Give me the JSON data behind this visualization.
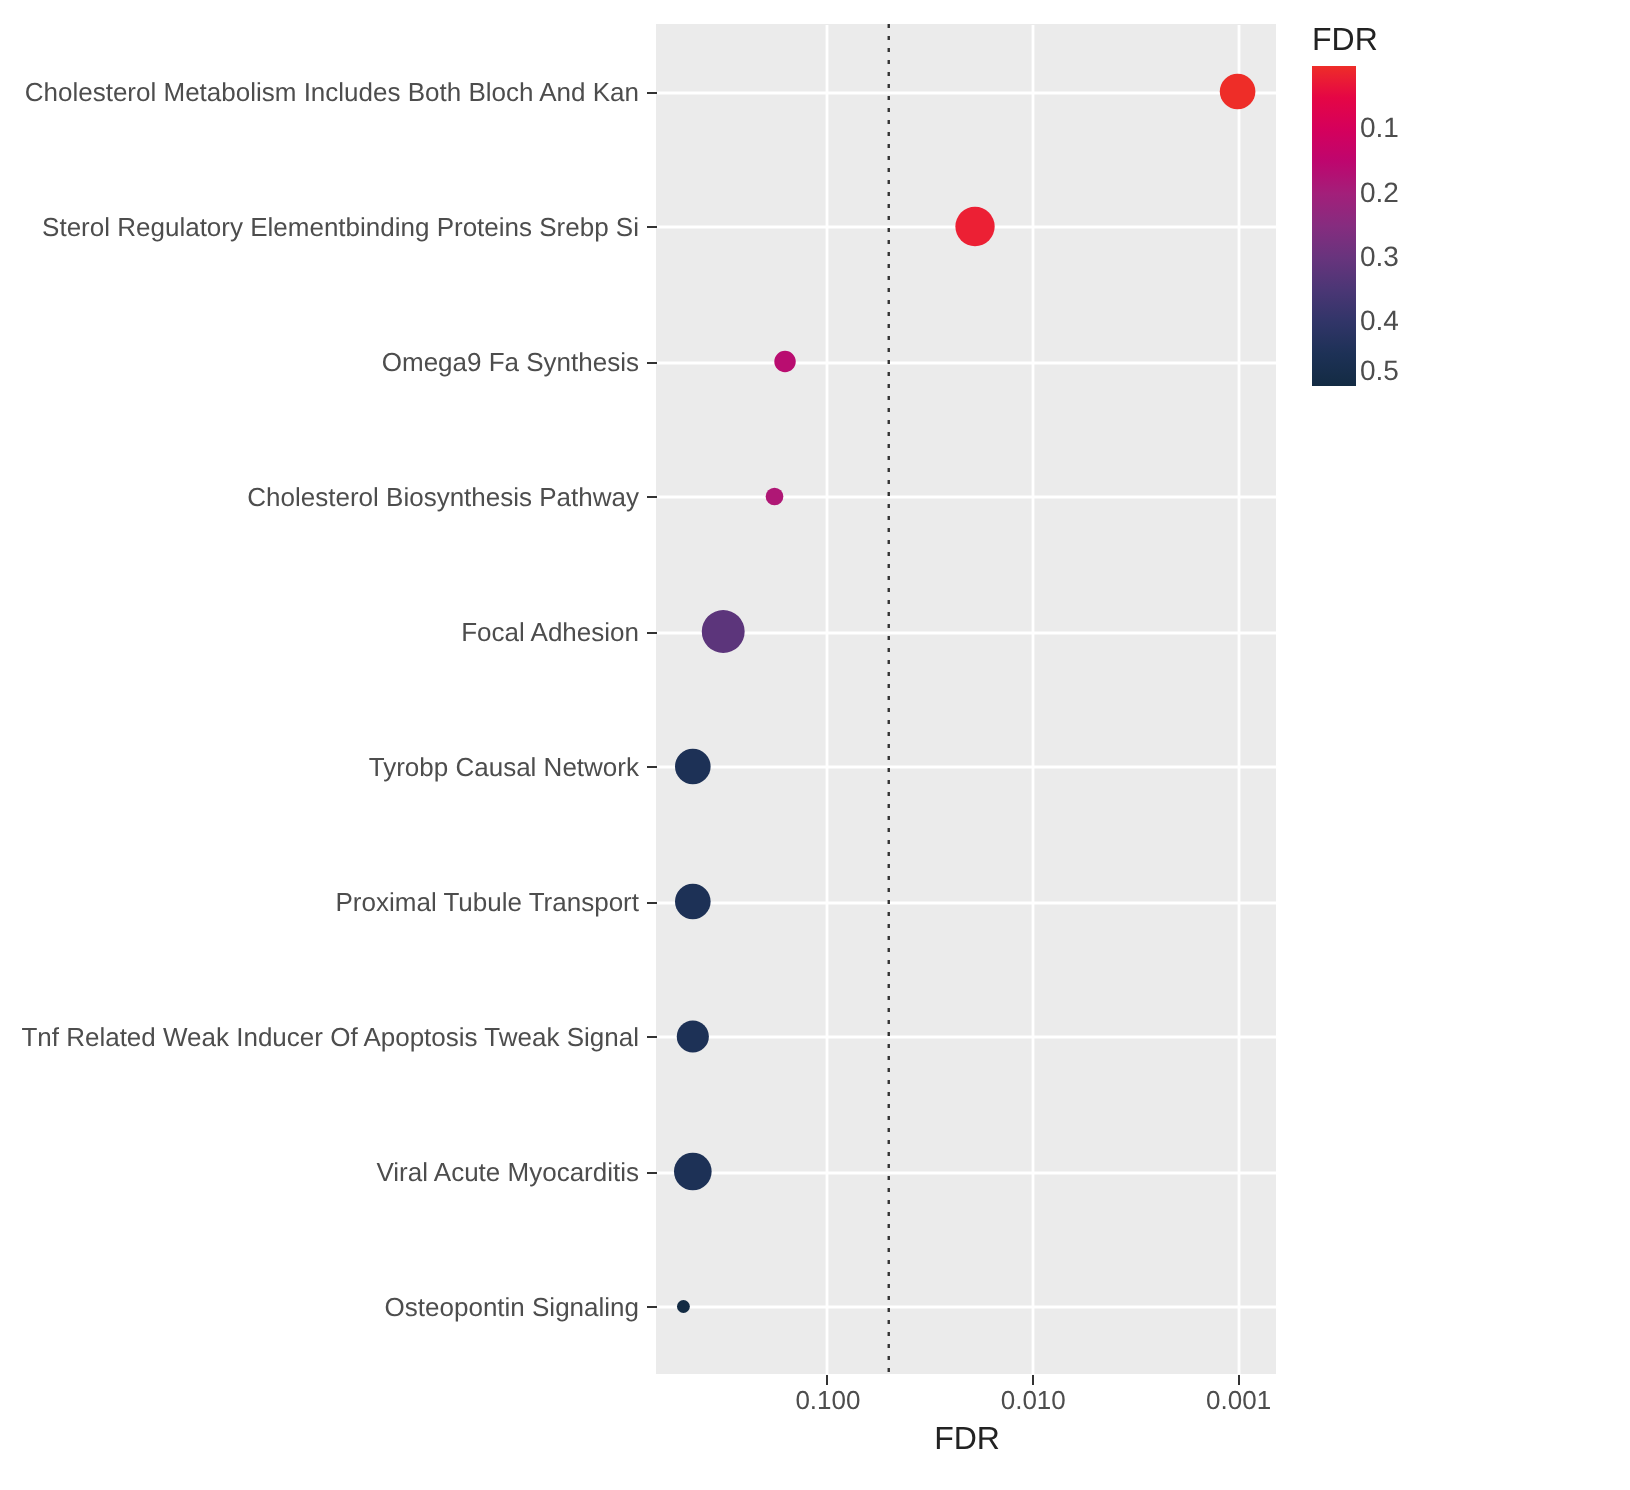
{
  "chart_data": {
    "type": "bubble",
    "orientation": "horizontal",
    "xlabel": "FDR",
    "clabel": "FDR",
    "categories": [
      "Cholesterol Metabolism Includes Both Bloch And Kan",
      "Sterol Regulatory Elementbinding Proteins Srebp Si",
      "Omega9 Fa Synthesis",
      "Cholesterol Biosynthesis Pathway",
      "Focal Adhesion",
      "Tyrobp Causal Network",
      "Proximal Tubule Transport",
      "Tnf Related Weak Inducer Of Apoptosis Tweak Signal",
      "Viral Acute Myocarditis",
      "Osteopontin Signaling"
    ],
    "values": [
      0.001,
      0.019,
      0.16,
      0.18,
      0.32,
      0.45,
      0.45,
      0.45,
      0.45,
      0.5
    ],
    "cvalues": [
      0.001,
      0.019,
      0.16,
      0.18,
      0.32,
      0.45,
      0.45,
      0.45,
      0.45,
      0.5
    ],
    "sizes": [
      0.69,
      0.84,
      0.25,
      0.17,
      1,
      0.69,
      0.69,
      0.56,
      0.77,
      0.09
    ],
    "log": "x",
    "xlim": [
      0.68,
      0.00065
    ],
    "xticks": [
      {
        "value": 0.1,
        "label": "0.100"
      },
      {
        "value": 0.01,
        "label": "0.010"
      },
      {
        "value": 0.001,
        "label": "0.001"
      }
    ],
    "clim": [
      0.5,
      0.001
    ],
    "cticks": [
      0.1,
      0.2,
      0.3,
      0.4,
      0.5
    ],
    "ref_lines": [
      {
        "axis": "x",
        "value": 0.05,
        "line_style": "dotted"
      }
    ],
    "grid": true
  }
}
